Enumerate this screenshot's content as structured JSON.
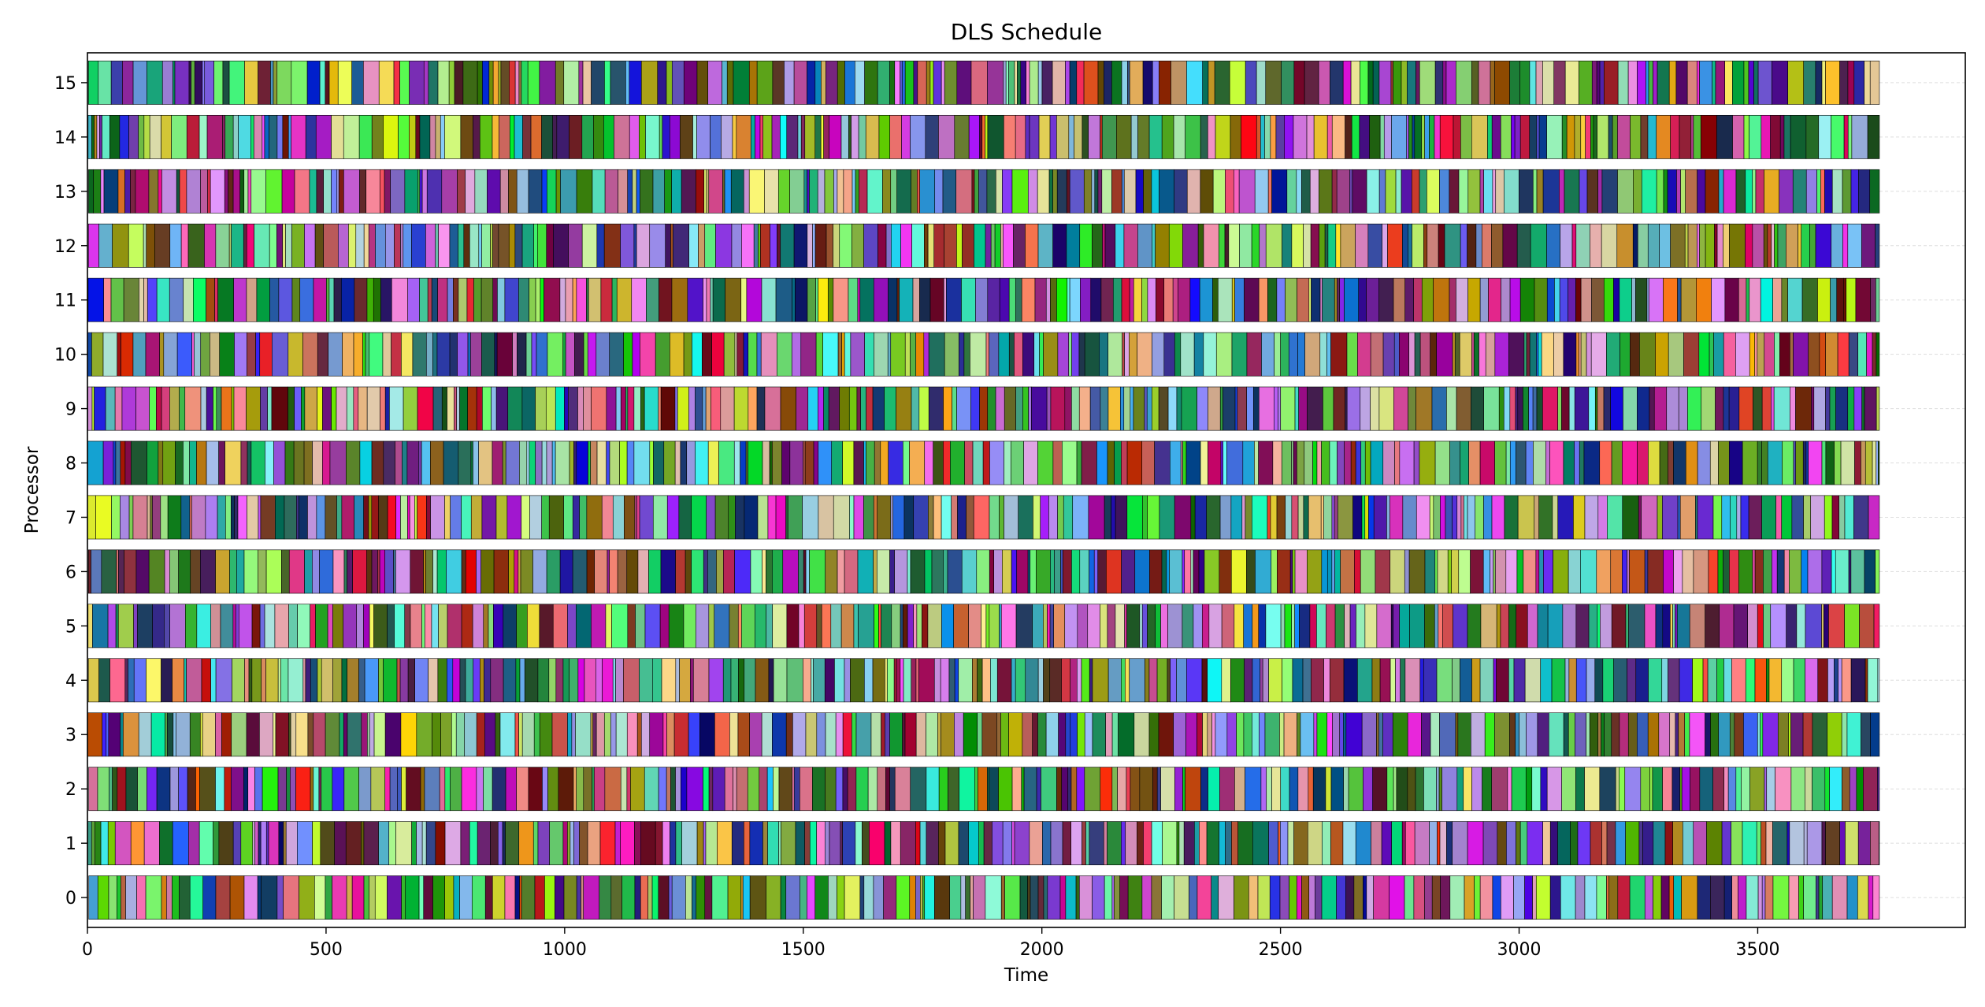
{
  "chart_data": {
    "type": "gantt",
    "title": "DLS Schedule",
    "xlabel": "Time",
    "ylabel": "Processor",
    "xlim": [
      0,
      3935
    ],
    "ylim": [
      -0.55,
      15.55
    ],
    "x_ticks": [
      0,
      500,
      1000,
      1500,
      2000,
      2500,
      3000,
      3500
    ],
    "processors": [
      0,
      1,
      2,
      3,
      4,
      5,
      6,
      7,
      8,
      9,
      10,
      11,
      12,
      13,
      14,
      15
    ],
    "grid": "y-major, light dashed",
    "schedule_start": 0,
    "makespan": 3755,
    "task_duration_range": [
      4,
      34
    ],
    "task_edge_color": "#000000",
    "task_colors": "random per task",
    "approx_tasks_per_processor": 250,
    "bar_height": 0.8
  }
}
